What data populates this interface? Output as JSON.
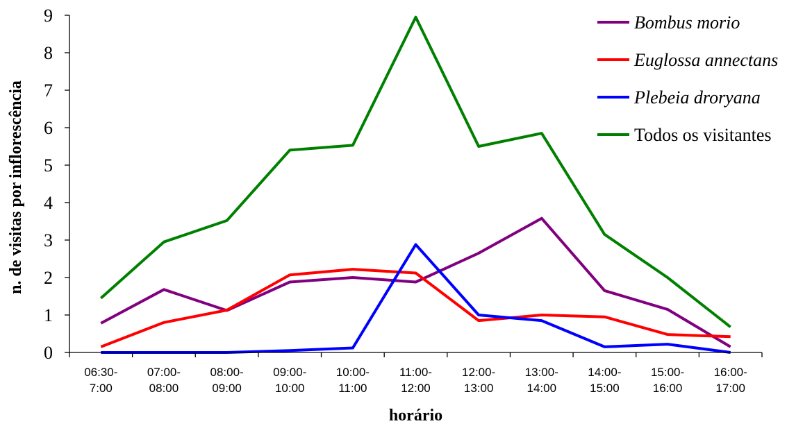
{
  "chart_data": {
    "type": "line",
    "xlabel": "horário",
    "ylabel": "n. de visitas por inflorescência",
    "ylim": [
      0,
      9
    ],
    "yticks": [
      "0",
      "1",
      "2",
      "3",
      "4",
      "5",
      "6",
      "7",
      "8",
      "9"
    ],
    "categories": [
      [
        "06:30-",
        "7:00"
      ],
      [
        "07:00-",
        "08:00"
      ],
      [
        "08:00-",
        "09:00"
      ],
      [
        "09:00-",
        "10:00"
      ],
      [
        "10:00-",
        "11:00"
      ],
      [
        "11:00-",
        "12:00"
      ],
      [
        "12:00-",
        "13:00"
      ],
      [
        "13:00-",
        "14:00"
      ],
      [
        "14:00-",
        "15:00"
      ],
      [
        "15:00-",
        "16:00"
      ],
      [
        "16:00-",
        "17:00"
      ]
    ],
    "grid": false,
    "legend_position": "top-right",
    "series": [
      {
        "name": "Bombus morio",
        "italic": true,
        "color": "#800080",
        "values": [
          0.78,
          1.68,
          1.12,
          1.88,
          2.0,
          1.88,
          2.65,
          3.58,
          1.65,
          1.15,
          0.15
        ]
      },
      {
        "name": "Euglossa annectans",
        "italic": true,
        "color": "#ff0000",
        "values": [
          0.15,
          0.8,
          1.13,
          2.07,
          2.22,
          2.12,
          0.85,
          1.0,
          0.95,
          0.48,
          0.42
        ]
      },
      {
        "name": "Plebeia droryana",
        "italic": true,
        "color": "#0000ff",
        "values": [
          0.0,
          0.0,
          0.0,
          0.05,
          0.12,
          2.88,
          1.0,
          0.85,
          0.15,
          0.22,
          0.0
        ]
      },
      {
        "name": "Todos os visitantes",
        "italic": false,
        "color": "#008000",
        "values": [
          1.45,
          2.95,
          3.52,
          5.4,
          5.53,
          8.95,
          5.5,
          5.85,
          3.15,
          2.0,
          0.68
        ]
      }
    ]
  }
}
